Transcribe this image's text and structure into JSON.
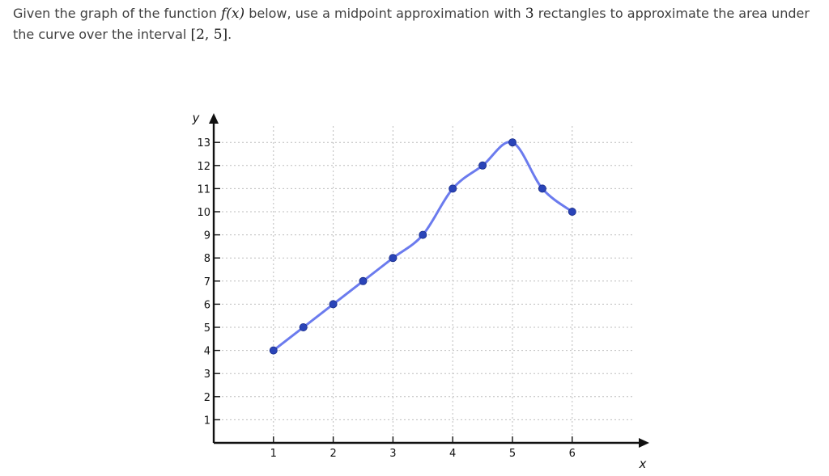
{
  "question": {
    "part1": "Given the graph of the function ",
    "func": "f(x)",
    "part2": " below, use a midpoint approximation with ",
    "count": "3",
    "part3": " rectangles to approximate the area under the curve over the interval ",
    "interval": "[2, 5]",
    "part4": "."
  },
  "chart_data": {
    "type": "line",
    "xlabel": "x",
    "ylabel": "y",
    "xlim": [
      0.0,
      6.5
    ],
    "ylim": [
      0,
      13.8
    ],
    "x_ticks": [
      1,
      2,
      3,
      4,
      5,
      6
    ],
    "y_ticks": [
      1,
      2,
      3,
      4,
      5,
      6,
      7,
      8,
      9,
      10,
      11,
      12,
      13
    ],
    "grid": true,
    "points": [
      {
        "x": 1,
        "y": 4
      },
      {
        "x": 1.5,
        "y": 5
      },
      {
        "x": 2,
        "y": 6
      },
      {
        "x": 2.5,
        "y": 7
      },
      {
        "x": 3,
        "y": 8
      },
      {
        "x": 3.5,
        "y": 9
      },
      {
        "x": 4,
        "y": 11
      },
      {
        "x": 4.5,
        "y": 12
      },
      {
        "x": 5,
        "y": 13
      },
      {
        "x": 5.5,
        "y": 11
      },
      {
        "x": 6,
        "y": 10
      }
    ],
    "colors": {
      "line": "#6b7bee",
      "point": "#2a44b8",
      "grid": "#bdbdbd",
      "axis": "#111111"
    }
  }
}
